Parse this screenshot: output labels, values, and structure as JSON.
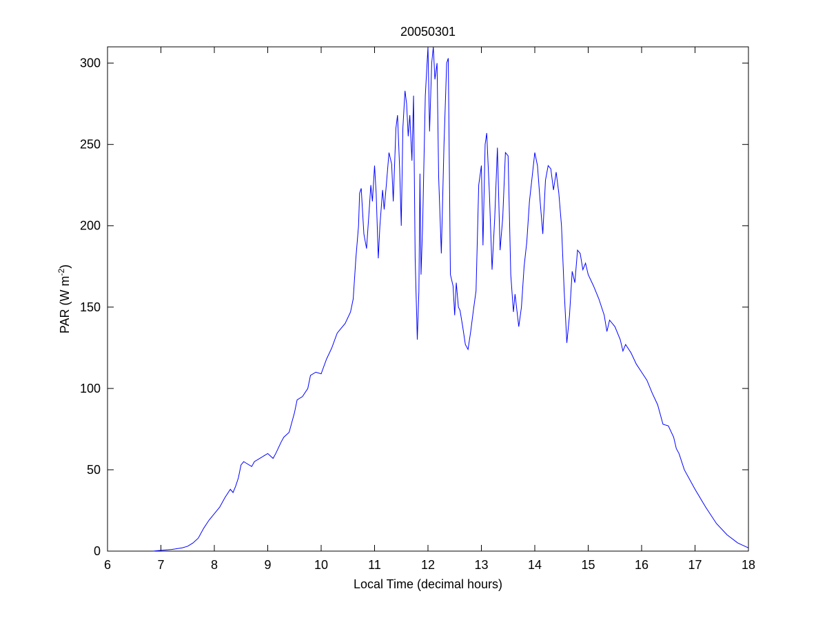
{
  "chart_data": {
    "type": "line",
    "title": "20050301",
    "xlabel": "Local Time (decimal hours)",
    "ylabel": {
      "text": "PAR (W m",
      "superscript": "-2",
      "suffix": ")"
    },
    "xlim": [
      6,
      18
    ],
    "xticks": [
      6,
      7,
      8,
      9,
      10,
      11,
      12,
      13,
      14,
      15,
      16,
      17,
      18
    ],
    "ylim": [
      0,
      310
    ],
    "yticks": [
      0,
      50,
      100,
      150,
      200,
      250,
      300
    ],
    "grid": false,
    "series": [
      {
        "color": "#0000ff",
        "x": [
          6.85,
          7.0,
          7.2,
          7.4,
          7.5,
          7.6,
          7.7,
          7.8,
          7.9,
          8.0,
          8.1,
          8.2,
          8.3,
          8.35,
          8.4,
          8.45,
          8.5,
          8.55,
          8.6,
          8.7,
          8.75,
          8.85,
          9.0,
          9.1,
          9.15,
          9.25,
          9.3,
          9.4,
          9.5,
          9.55,
          9.65,
          9.75,
          9.8,
          9.9,
          10.0,
          10.1,
          10.2,
          10.3,
          10.35,
          10.45,
          10.55,
          10.6,
          10.65,
          10.7,
          10.72,
          10.75,
          10.8,
          10.85,
          10.9,
          10.93,
          10.96,
          11.0,
          11.03,
          11.07,
          11.1,
          11.15,
          11.18,
          11.22,
          11.27,
          11.32,
          11.35,
          11.4,
          11.43,
          11.47,
          11.5,
          11.53,
          11.57,
          11.6,
          11.63,
          11.66,
          11.7,
          11.73,
          11.76,
          11.8,
          11.83,
          11.85,
          11.87,
          11.9,
          11.95,
          12.0,
          12.03,
          12.07,
          12.1,
          12.13,
          12.17,
          12.2,
          12.25,
          12.3,
          12.35,
          12.38,
          12.42,
          12.47,
          12.5,
          12.53,
          12.57,
          12.6,
          12.65,
          12.7,
          12.75,
          12.8,
          12.85,
          12.9,
          12.95,
          13.0,
          13.03,
          13.07,
          13.1,
          13.15,
          13.2,
          13.25,
          13.3,
          13.35,
          13.4,
          13.45,
          13.5,
          13.55,
          13.6,
          13.63,
          13.7,
          13.75,
          13.8,
          13.85,
          13.9,
          13.95,
          14.0,
          14.05,
          14.1,
          14.15,
          14.2,
          14.25,
          14.3,
          14.35,
          14.4,
          14.45,
          14.5,
          14.55,
          14.6,
          14.65,
          14.7,
          14.75,
          14.8,
          14.85,
          14.9,
          14.95,
          15.0,
          15.1,
          15.2,
          15.3,
          15.35,
          15.4,
          15.5,
          15.6,
          15.65,
          15.7,
          15.8,
          15.9,
          16.0,
          16.1,
          16.2,
          16.3,
          16.4,
          16.5,
          16.6,
          16.65,
          16.7,
          16.8,
          17.0,
          17.2,
          17.4,
          17.6,
          17.8,
          18.0
        ],
        "values": [
          0,
          0.5,
          1,
          2,
          3,
          5,
          8,
          14,
          19,
          23,
          27,
          33,
          38,
          36,
          40,
          45,
          53,
          55,
          54,
          52,
          55,
          57,
          60,
          57,
          60,
          67,
          70,
          73,
          85,
          93,
          95,
          100,
          108,
          110,
          109,
          118,
          125,
          134,
          136,
          140,
          147,
          155,
          180,
          200,
          220,
          223,
          195,
          186,
          210,
          225,
          215,
          237,
          220,
          180,
          200,
          222,
          210,
          225,
          245,
          238,
          215,
          260,
          268,
          235,
          200,
          260,
          283,
          275,
          255,
          268,
          240,
          280,
          180,
          130,
          160,
          232,
          170,
          200,
          280,
          310,
          258,
          300,
          310,
          290,
          300,
          230,
          183,
          250,
          300,
          303,
          170,
          163,
          145,
          165,
          150,
          148,
          138,
          127,
          124,
          135,
          148,
          160,
          225,
          237,
          188,
          250,
          257,
          220,
          173,
          205,
          248,
          185,
          205,
          245,
          243,
          170,
          147,
          158,
          138,
          150,
          175,
          190,
          215,
          230,
          245,
          237,
          215,
          195,
          228,
          237,
          235,
          222,
          233,
          220,
          200,
          160,
          128,
          145,
          172,
          165,
          185,
          183,
          173,
          177,
          170,
          163,
          155,
          145,
          135,
          142,
          138,
          130,
          123,
          127,
          122,
          115,
          110,
          105,
          97,
          90,
          78,
          77,
          70,
          63,
          60,
          50,
          38,
          27,
          17,
          10,
          5,
          2
        ]
      }
    ]
  }
}
